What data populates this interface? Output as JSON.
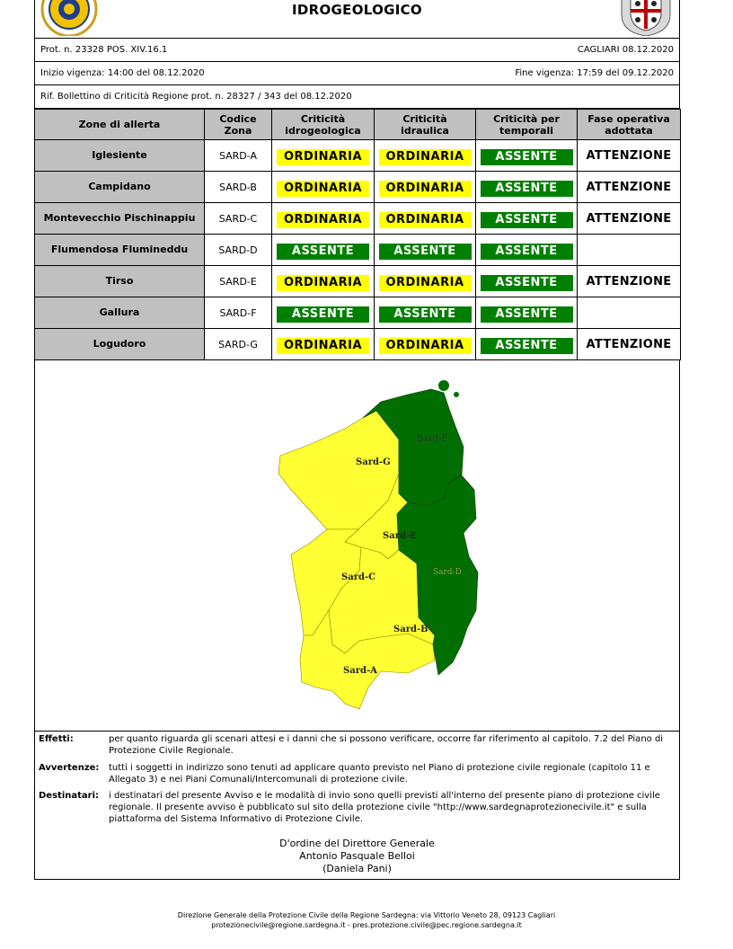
{
  "header": {
    "title": "IDROGEOLOGICO",
    "logo_left_text": "REGIONE SARDEGNA PROTEZIONE CIVILE",
    "logo_right_text": "stemma"
  },
  "info": {
    "prot": "Prot. n. 23328 POS. XIV.16.1",
    "place_date": "CAGLIARI 08.12.2020",
    "start": "Inizio vigenza: 14:00 del 08.12.2020",
    "end": "Fine vigenza: 17:59 del 09.12.2020",
    "rif": "Rif. Bollettino di Criticità Regione prot. n. 28327 / 343 del 08.12.2020"
  },
  "table": {
    "headers": {
      "zone": "Zone di allerta",
      "code_1": "Codice",
      "code_2": "Zona",
      "idro_1": "Criticità",
      "idro_2": "idrogeologica",
      "idra_1": "Criticità",
      "idra_2": "idraulica",
      "temp_1": "Criticità per",
      "temp_2": "temporali",
      "fase_1": "Fase operativa",
      "fase_2": "adottata"
    },
    "rows": [
      {
        "zone": "Iglesiente",
        "code": "SARD-A",
        "idro": "ORDINARIA",
        "idra": "ORDINARIA",
        "temp": "ASSENTE",
        "fase": "ATTENZIONE"
      },
      {
        "zone": "Campidano",
        "code": "SARD-B",
        "idro": "ORDINARIA",
        "idra": "ORDINARIA",
        "temp": "ASSENTE",
        "fase": "ATTENZIONE"
      },
      {
        "zone": "Montevecchio Pischinappiu",
        "code": "SARD-C",
        "idro": "ORDINARIA",
        "idra": "ORDINARIA",
        "temp": "ASSENTE",
        "fase": "ATTENZIONE"
      },
      {
        "zone": "Flumendosa Flumineddu",
        "code": "SARD-D",
        "idro": "ASSENTE",
        "idra": "ASSENTE",
        "temp": "ASSENTE",
        "fase": ""
      },
      {
        "zone": "Tirso",
        "code": "SARD-E",
        "idro": "ORDINARIA",
        "idra": "ORDINARIA",
        "temp": "ASSENTE",
        "fase": "ATTENZIONE"
      },
      {
        "zone": "Gallura",
        "code": "SARD-F",
        "idro": "ASSENTE",
        "idra": "ASSENTE",
        "temp": "ASSENTE",
        "fase": ""
      },
      {
        "zone": "Logudoro",
        "code": "SARD-G",
        "idro": "ORDINARIA",
        "idra": "ORDINARIA",
        "temp": "ASSENTE",
        "fase": "ATTENZIONE"
      }
    ]
  },
  "map": {
    "labels": {
      "a": "Sard-A",
      "b": "Sard-B",
      "c": "Sard-C",
      "d": "Sard-D",
      "e": "Sard-E",
      "f": "Sard-F",
      "g": "Sard-G"
    },
    "colors": {
      "ordinaria": "#ffff33",
      "assente": "#006e00"
    }
  },
  "notes": {
    "effetti_k": "Effetti:",
    "effetti_v": "per quanto riguarda gli scenari attesi e i danni che si possono verificare, occorre far riferimento al capitolo. 7.2 del Piano di Protezione Civile Regionale.",
    "avv_k": "Avvertenze:",
    "avv_v": "tutti i soggetti in indirizzo sono tenuti ad applicare quanto previsto nel Piano di protezione civile regionale (capitolo 11 e Allegato 3) e nei Piani Comunali/Intercomunali di protezione civile.",
    "dest_k": "Destinatari:",
    "dest_v": "i destinatari del presente Avviso e le modalità di invio sono quelli previsti all'interno del presente piano di protezione civile regionale. Il presente avviso è pubblicato sul sito della protezione civile \"http://www.sardegnaprotezionecivile.it\" e sulla piattaforma del Sistema Informativo di Protezione Civile."
  },
  "signature": {
    "line1": "D'ordine del Direttore Generale",
    "line2": "Antonio Pasquale Belloi",
    "line3": "(Daniela Pani)"
  },
  "footer": {
    "line1": "Direzione Generale della Protezione Civile della Regione Sardegna: via Vittorio Veneto 28, 09123 Cagliari",
    "line2": "protezionecivile@regione.sardegna.it - pres.protezione.civile@pec.regione.sardegna.it"
  }
}
